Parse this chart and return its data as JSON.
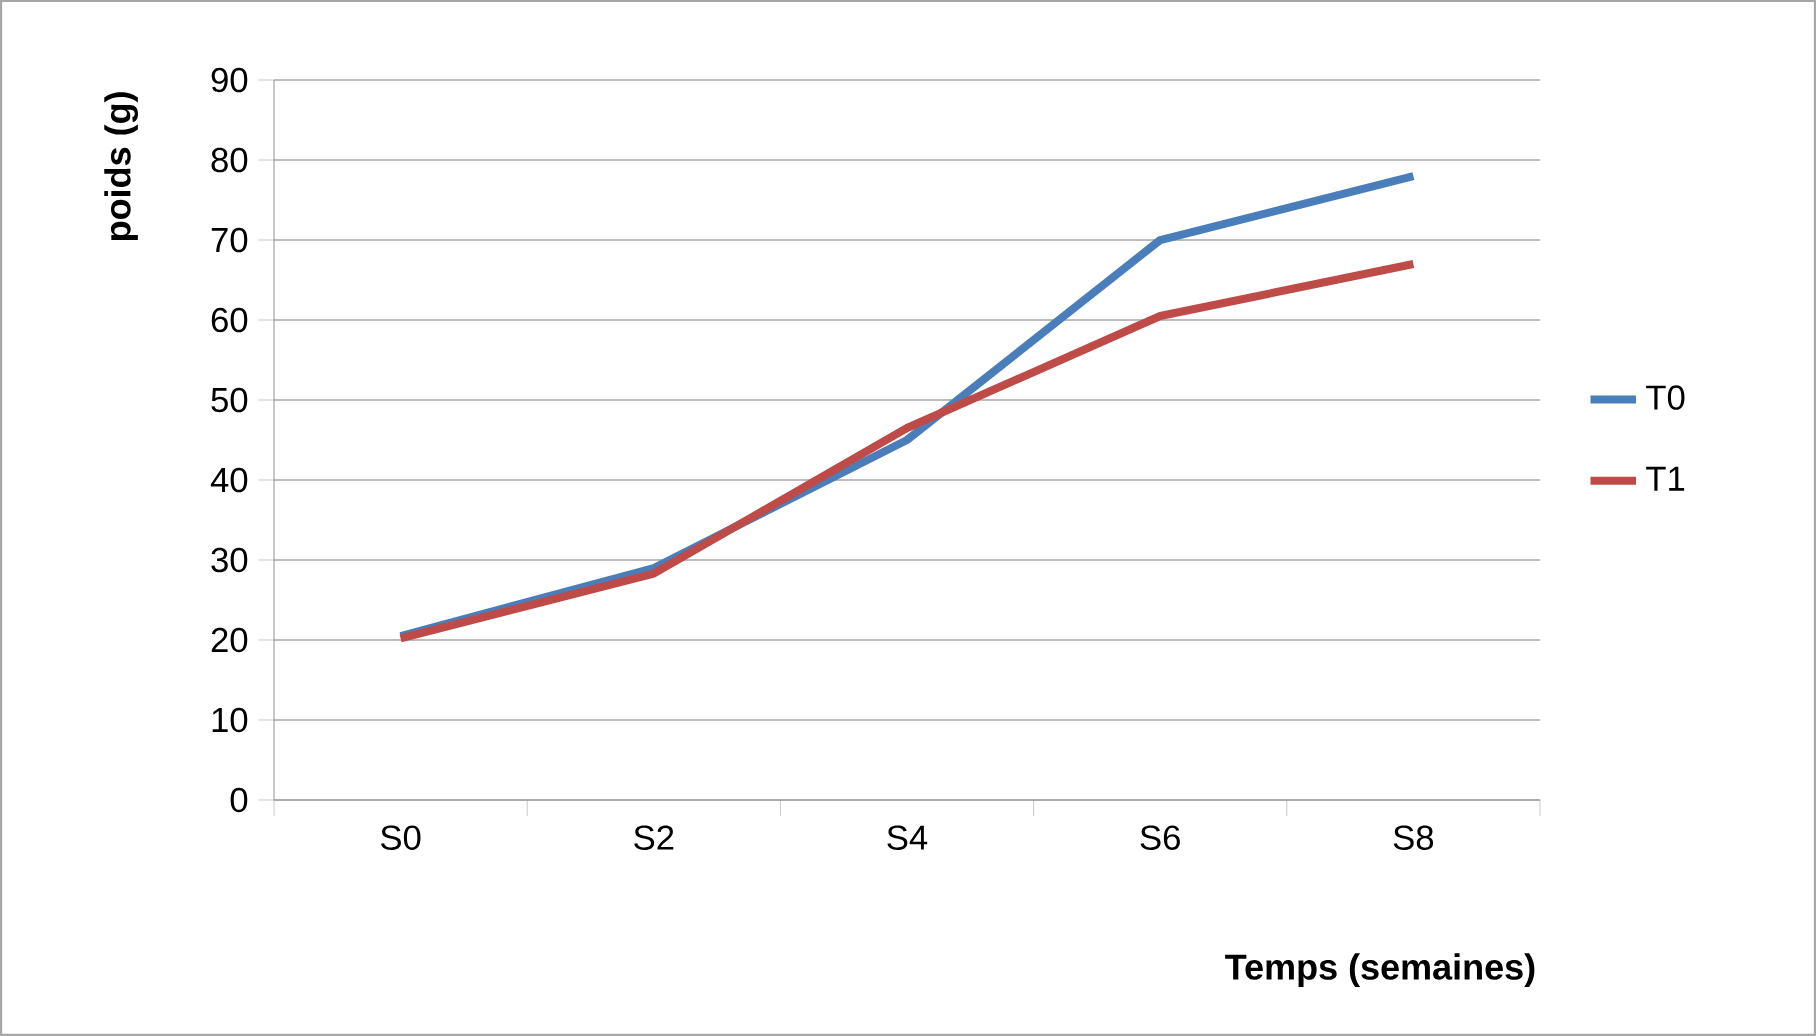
{
  "chart_data": {
    "type": "line",
    "xlabel": "Temps (semaines)",
    "ylabel": "poids (g)",
    "categories": [
      "S0",
      "S2",
      "S4",
      "S6",
      "S8"
    ],
    "series": [
      {
        "name": "T0",
        "color": "#4a7ebb",
        "values": [
          20.5,
          29,
          45,
          70,
          78
        ]
      },
      {
        "name": "T1",
        "color": "#be4b48",
        "values": [
          20.2,
          28.3,
          46.5,
          60.5,
          67
        ]
      }
    ],
    "ylim": [
      0,
      90
    ],
    "yticks": [
      0,
      10,
      20,
      30,
      40,
      50,
      60,
      70,
      80,
      90
    ],
    "grid": "y",
    "legend": "right",
    "marker": "none",
    "line_style": "solid"
  }
}
